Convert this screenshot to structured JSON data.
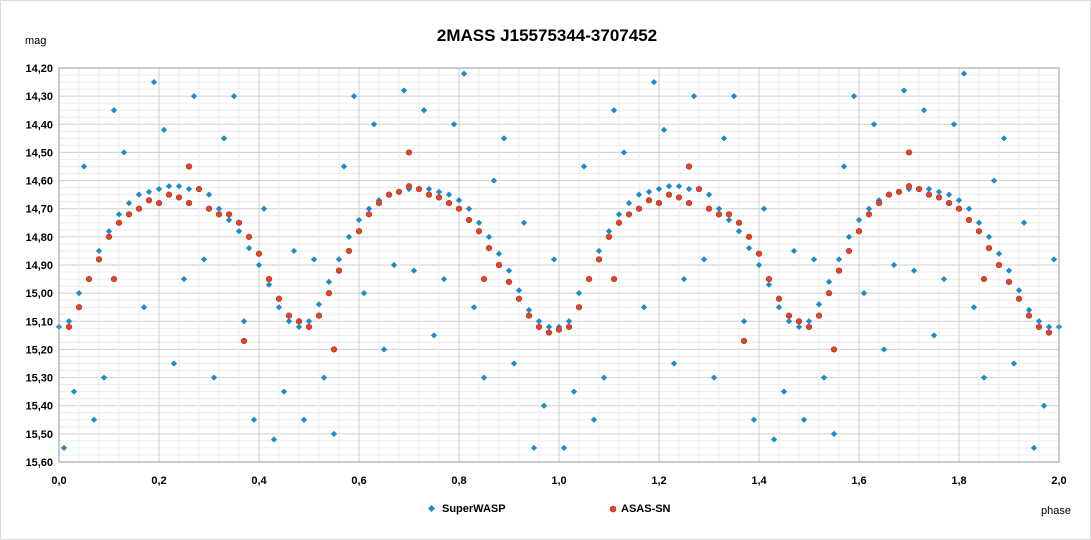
{
  "chart_data": {
    "type": "scatter",
    "title": "2MASS  J15575344-3707452",
    "ylabel": "mag",
    "xlabel": "phase",
    "xlim": [
      0.0,
      2.0
    ],
    "ylim": [
      14.2,
      15.6
    ],
    "y_inverted": true,
    "grid": "major and minor gridlines",
    "legend_position": "bottom",
    "x_ticks": [
      "0,0",
      "0,2",
      "0,4",
      "0,6",
      "0,8",
      "1,0",
      "1,2",
      "1,4",
      "1,6",
      "1,8",
      "2,0"
    ],
    "y_ticks": [
      "14,20",
      "14,30",
      "14,40",
      "14,50",
      "14,60",
      "14,70",
      "14,80",
      "14,90",
      "15,00",
      "15,10",
      "15,20",
      "15,30",
      "15,40",
      "15,50",
      "15,60"
    ],
    "series": [
      {
        "name": "SuperWASP",
        "color": "#1f8ac9",
        "marker": "diamond",
        "pattern": "double-humped light curve repeated over phase 0-2; maxima ~14.65 mag near phase 0.25 and 0.75, minima ~15.15 mag near phase 0.0, 0.5, 1.0 with large scatter (14.2-15.6)",
        "points": [
          [
            0.0,
            15.12
          ],
          [
            0.02,
            15.1
          ],
          [
            0.04,
            15.0
          ],
          [
            0.06,
            14.95
          ],
          [
            0.08,
            14.85
          ],
          [
            0.1,
            14.78
          ],
          [
            0.12,
            14.72
          ],
          [
            0.14,
            14.68
          ],
          [
            0.16,
            14.65
          ],
          [
            0.18,
            14.64
          ],
          [
            0.2,
            14.63
          ],
          [
            0.22,
            14.62
          ],
          [
            0.24,
            14.62
          ],
          [
            0.26,
            14.63
          ],
          [
            0.28,
            14.63
          ],
          [
            0.3,
            14.65
          ],
          [
            0.32,
            14.7
          ],
          [
            0.34,
            14.74
          ],
          [
            0.36,
            14.78
          ],
          [
            0.38,
            14.84
          ],
          [
            0.4,
            14.9
          ],
          [
            0.42,
            14.97
          ],
          [
            0.44,
            15.05
          ],
          [
            0.46,
            15.1
          ],
          [
            0.48,
            15.12
          ],
          [
            0.5,
            15.1
          ],
          [
            0.52,
            15.04
          ],
          [
            0.54,
            14.96
          ],
          [
            0.56,
            14.88
          ],
          [
            0.58,
            14.8
          ],
          [
            0.6,
            14.74
          ],
          [
            0.62,
            14.7
          ],
          [
            0.64,
            14.67
          ],
          [
            0.66,
            14.65
          ],
          [
            0.68,
            14.64
          ],
          [
            0.7,
            14.63
          ],
          [
            0.72,
            14.63
          ],
          [
            0.74,
            14.63
          ],
          [
            0.76,
            14.64
          ],
          [
            0.78,
            14.65
          ],
          [
            0.8,
            14.67
          ],
          [
            0.82,
            14.7
          ],
          [
            0.84,
            14.75
          ],
          [
            0.86,
            14.8
          ],
          [
            0.88,
            14.86
          ],
          [
            0.9,
            14.92
          ],
          [
            0.92,
            14.99
          ],
          [
            0.94,
            15.06
          ],
          [
            0.96,
            15.1
          ],
          [
            0.98,
            15.12
          ],
          [
            1.0,
            15.12
          ],
          [
            1.02,
            15.1
          ],
          [
            1.04,
            15.0
          ],
          [
            1.06,
            14.95
          ],
          [
            1.08,
            14.85
          ],
          [
            1.1,
            14.78
          ],
          [
            1.12,
            14.72
          ],
          [
            1.14,
            14.68
          ],
          [
            1.16,
            14.65
          ],
          [
            1.18,
            14.64
          ],
          [
            1.2,
            14.63
          ],
          [
            1.22,
            14.62
          ],
          [
            1.24,
            14.62
          ],
          [
            1.26,
            14.63
          ],
          [
            1.28,
            14.63
          ],
          [
            1.3,
            14.65
          ],
          [
            1.32,
            14.7
          ],
          [
            1.34,
            14.74
          ],
          [
            1.36,
            14.78
          ],
          [
            1.38,
            14.84
          ],
          [
            1.4,
            14.9
          ],
          [
            1.42,
            14.97
          ],
          [
            1.44,
            15.05
          ],
          [
            1.46,
            15.1
          ],
          [
            1.48,
            15.12
          ],
          [
            1.5,
            15.1
          ],
          [
            1.52,
            15.04
          ],
          [
            1.54,
            14.96
          ],
          [
            1.56,
            14.88
          ],
          [
            1.58,
            14.8
          ],
          [
            1.6,
            14.74
          ],
          [
            1.62,
            14.7
          ],
          [
            1.64,
            14.67
          ],
          [
            1.66,
            14.65
          ],
          [
            1.68,
            14.64
          ],
          [
            1.7,
            14.63
          ],
          [
            1.72,
            14.63
          ],
          [
            1.74,
            14.63
          ],
          [
            1.76,
            14.64
          ],
          [
            1.78,
            14.65
          ],
          [
            1.8,
            14.67
          ],
          [
            1.82,
            14.7
          ],
          [
            1.84,
            14.75
          ],
          [
            1.86,
            14.8
          ],
          [
            1.88,
            14.86
          ],
          [
            1.9,
            14.92
          ],
          [
            1.92,
            14.99
          ],
          [
            1.94,
            15.06
          ],
          [
            1.96,
            15.1
          ],
          [
            1.98,
            15.12
          ],
          [
            2.0,
            15.12
          ],
          [
            0.03,
            15.35
          ],
          [
            0.05,
            14.55
          ],
          [
            0.09,
            15.3
          ],
          [
            0.13,
            14.5
          ],
          [
            0.17,
            15.05
          ],
          [
            0.21,
            14.42
          ],
          [
            0.25,
            14.95
          ],
          [
            0.27,
            14.3
          ],
          [
            0.29,
            14.88
          ],
          [
            0.33,
            14.45
          ],
          [
            0.37,
            15.1
          ],
          [
            0.41,
            14.7
          ],
          [
            0.45,
            15.35
          ],
          [
            0.47,
            14.85
          ],
          [
            0.49,
            15.45
          ],
          [
            0.51,
            14.88
          ],
          [
            0.53,
            15.3
          ],
          [
            0.57,
            14.55
          ],
          [
            0.61,
            15.0
          ],
          [
            0.63,
            14.4
          ],
          [
            0.67,
            14.9
          ],
          [
            0.69,
            14.28
          ],
          [
            0.71,
            14.92
          ],
          [
            0.73,
            14.35
          ],
          [
            0.77,
            14.95
          ],
          [
            0.79,
            14.4
          ],
          [
            0.83,
            15.05
          ],
          [
            0.87,
            14.6
          ],
          [
            0.91,
            15.25
          ],
          [
            0.93,
            14.75
          ],
          [
            0.97,
            15.4
          ],
          [
            0.99,
            14.88
          ],
          [
            1.03,
            15.35
          ],
          [
            1.05,
            14.55
          ],
          [
            1.09,
            15.3
          ],
          [
            1.13,
            14.5
          ],
          [
            1.17,
            15.05
          ],
          [
            1.21,
            14.42
          ],
          [
            1.25,
            14.95
          ],
          [
            1.27,
            14.3
          ],
          [
            1.29,
            14.88
          ],
          [
            1.33,
            14.45
          ],
          [
            1.37,
            15.1
          ],
          [
            1.41,
            14.7
          ],
          [
            1.45,
            15.35
          ],
          [
            1.47,
            14.85
          ],
          [
            1.49,
            15.45
          ],
          [
            1.51,
            14.88
          ],
          [
            1.53,
            15.3
          ],
          [
            1.57,
            14.55
          ],
          [
            1.61,
            15.0
          ],
          [
            1.63,
            14.4
          ],
          [
            1.67,
            14.9
          ],
          [
            1.69,
            14.28
          ],
          [
            1.71,
            14.92
          ],
          [
            1.73,
            14.35
          ],
          [
            1.77,
            14.95
          ],
          [
            1.79,
            14.4
          ],
          [
            1.83,
            15.05
          ],
          [
            1.87,
            14.6
          ],
          [
            1.91,
            15.25
          ],
          [
            1.93,
            14.75
          ],
          [
            1.97,
            15.4
          ],
          [
            1.99,
            14.88
          ],
          [
            0.01,
            15.55
          ],
          [
            0.07,
            15.45
          ],
          [
            0.11,
            14.35
          ],
          [
            0.19,
            14.25
          ],
          [
            0.23,
            15.25
          ],
          [
            0.31,
            15.3
          ],
          [
            0.35,
            14.3
          ],
          [
            0.39,
            15.45
          ],
          [
            0.43,
            15.52
          ],
          [
            0.55,
            15.5
          ],
          [
            0.59,
            14.3
          ],
          [
            0.65,
            15.2
          ],
          [
            0.75,
            15.15
          ],
          [
            0.81,
            14.22
          ],
          [
            0.85,
            15.3
          ],
          [
            0.89,
            14.45
          ],
          [
            0.95,
            15.55
          ],
          [
            1.01,
            15.55
          ],
          [
            1.07,
            15.45
          ],
          [
            1.11,
            14.35
          ],
          [
            1.19,
            14.25
          ],
          [
            1.23,
            15.25
          ],
          [
            1.31,
            15.3
          ],
          [
            1.35,
            14.3
          ],
          [
            1.39,
            15.45
          ],
          [
            1.43,
            15.52
          ],
          [
            1.55,
            15.5
          ],
          [
            1.59,
            14.3
          ],
          [
            1.65,
            15.2
          ],
          [
            1.75,
            15.15
          ],
          [
            1.81,
            14.22
          ],
          [
            1.85,
            15.3
          ],
          [
            1.89,
            14.45
          ],
          [
            1.95,
            15.55
          ]
        ]
      },
      {
        "name": "ASAS-SN",
        "color": "#e0452c",
        "marker": "circle",
        "points": [
          [
            0.02,
            15.12
          ],
          [
            0.04,
            15.05
          ],
          [
            0.06,
            14.95
          ],
          [
            0.08,
            14.88
          ],
          [
            0.1,
            14.8
          ],
          [
            0.12,
            14.75
          ],
          [
            0.14,
            14.72
          ],
          [
            0.16,
            14.7
          ],
          [
            0.18,
            14.67
          ],
          [
            0.2,
            14.68
          ],
          [
            0.22,
            14.65
          ],
          [
            0.24,
            14.66
          ],
          [
            0.26,
            14.68
          ],
          [
            0.28,
            14.63
          ],
          [
            0.3,
            14.7
          ],
          [
            0.32,
            14.72
          ],
          [
            0.34,
            14.72
          ],
          [
            0.36,
            14.75
          ],
          [
            0.38,
            14.8
          ],
          [
            0.4,
            14.86
          ],
          [
            0.42,
            14.95
          ],
          [
            0.44,
            15.02
          ],
          [
            0.46,
            15.08
          ],
          [
            0.48,
            15.1
          ],
          [
            0.5,
            15.12
          ],
          [
            0.52,
            15.08
          ],
          [
            0.54,
            15.0
          ],
          [
            0.56,
            14.92
          ],
          [
            0.58,
            14.85
          ],
          [
            0.6,
            14.78
          ],
          [
            0.62,
            14.72
          ],
          [
            0.64,
            14.68
          ],
          [
            0.66,
            14.65
          ],
          [
            0.68,
            14.64
          ],
          [
            0.7,
            14.62
          ],
          [
            0.72,
            14.63
          ],
          [
            0.74,
            14.65
          ],
          [
            0.76,
            14.66
          ],
          [
            0.78,
            14.68
          ],
          [
            0.8,
            14.7
          ],
          [
            0.82,
            14.74
          ],
          [
            0.84,
            14.78
          ],
          [
            0.86,
            14.84
          ],
          [
            0.88,
            14.9
          ],
          [
            0.9,
            14.96
          ],
          [
            0.92,
            15.02
          ],
          [
            0.94,
            15.08
          ],
          [
            0.96,
            15.12
          ],
          [
            0.98,
            15.14
          ],
          [
            1.0,
            15.13
          ],
          [
            0.37,
            15.17
          ],
          [
            0.55,
            15.2
          ],
          [
            0.7,
            14.5
          ],
          [
            0.26,
            14.55
          ],
          [
            0.11,
            14.95
          ],
          [
            0.85,
            14.95
          ],
          [
            1.02,
            15.12
          ],
          [
            1.04,
            15.05
          ],
          [
            1.06,
            14.95
          ],
          [
            1.08,
            14.88
          ],
          [
            1.1,
            14.8
          ],
          [
            1.12,
            14.75
          ],
          [
            1.14,
            14.72
          ],
          [
            1.16,
            14.7
          ],
          [
            1.18,
            14.67
          ],
          [
            1.2,
            14.68
          ],
          [
            1.22,
            14.65
          ],
          [
            1.24,
            14.66
          ],
          [
            1.26,
            14.68
          ],
          [
            1.28,
            14.63
          ],
          [
            1.3,
            14.7
          ],
          [
            1.32,
            14.72
          ],
          [
            1.34,
            14.72
          ],
          [
            1.36,
            14.75
          ],
          [
            1.38,
            14.8
          ],
          [
            1.4,
            14.86
          ],
          [
            1.42,
            14.95
          ],
          [
            1.44,
            15.02
          ],
          [
            1.46,
            15.08
          ],
          [
            1.48,
            15.1
          ],
          [
            1.5,
            15.12
          ],
          [
            1.52,
            15.08
          ],
          [
            1.54,
            15.0
          ],
          [
            1.56,
            14.92
          ],
          [
            1.58,
            14.85
          ],
          [
            1.6,
            14.78
          ],
          [
            1.62,
            14.72
          ],
          [
            1.64,
            14.68
          ],
          [
            1.66,
            14.65
          ],
          [
            1.68,
            14.64
          ],
          [
            1.7,
            14.62
          ],
          [
            1.72,
            14.63
          ],
          [
            1.74,
            14.65
          ],
          [
            1.76,
            14.66
          ],
          [
            1.78,
            14.68
          ],
          [
            1.8,
            14.7
          ],
          [
            1.82,
            14.74
          ],
          [
            1.84,
            14.78
          ],
          [
            1.86,
            14.84
          ],
          [
            1.88,
            14.9
          ],
          [
            1.9,
            14.96
          ],
          [
            1.92,
            15.02
          ],
          [
            1.94,
            15.08
          ],
          [
            1.96,
            15.12
          ],
          [
            1.98,
            15.14
          ],
          [
            1.37,
            15.17
          ],
          [
            1.55,
            15.2
          ],
          [
            1.7,
            14.5
          ],
          [
            1.26,
            14.55
          ],
          [
            1.11,
            14.95
          ],
          [
            1.85,
            14.95
          ]
        ]
      }
    ]
  }
}
